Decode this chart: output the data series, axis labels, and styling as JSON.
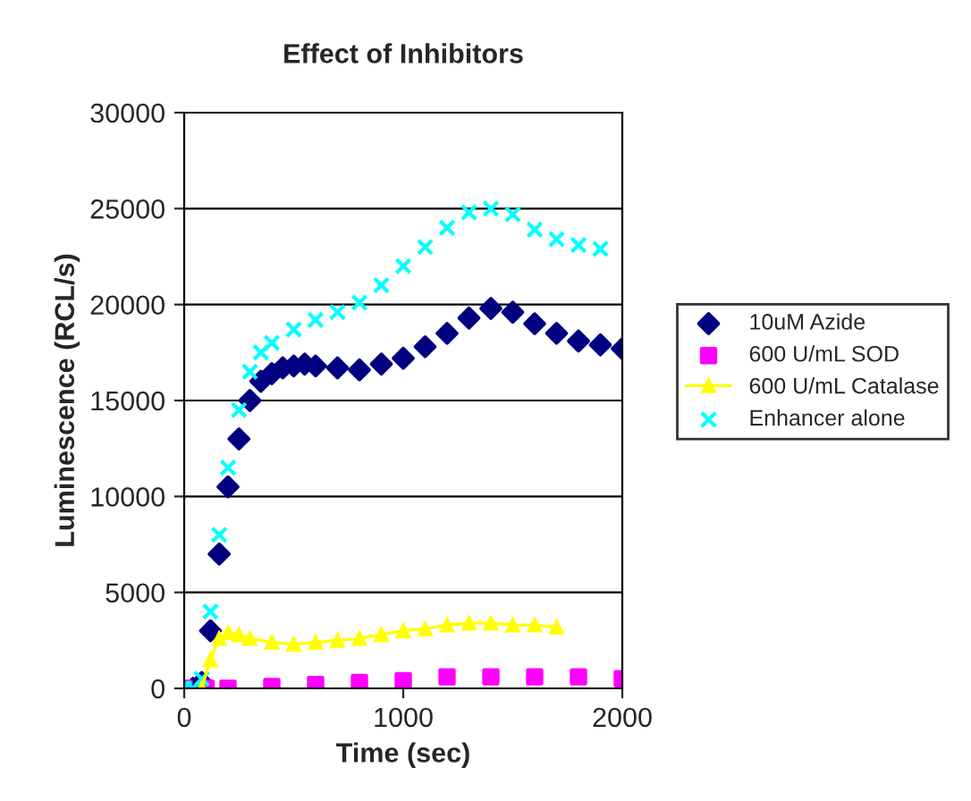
{
  "chart_data": {
    "type": "line",
    "title": "Effect of Inhibitors",
    "xlabel": "Time (sec)",
    "ylabel": "Luminescence (RCL/s)",
    "xlim": [
      0,
      2000
    ],
    "xticks": [
      0,
      1000,
      2000
    ],
    "ylim": [
      0,
      30000
    ],
    "yticks": [
      0,
      5000,
      10000,
      15000,
      20000,
      25000,
      30000
    ],
    "grid": "y",
    "legend": "right",
    "series": [
      {
        "name": "10uM Azide",
        "type": "scatter",
        "color": "#000080",
        "marker": "diamond",
        "x": [
          40,
          80,
          120,
          160,
          200,
          250,
          300,
          350,
          400,
          450,
          500,
          550,
          600,
          700,
          800,
          900,
          1000,
          1100,
          1200,
          1300,
          1400,
          1500,
          1600,
          1700,
          1800,
          1900,
          2000
        ],
        "values": [
          0,
          300,
          3000,
          7000,
          10500,
          13000,
          15000,
          16000,
          16400,
          16700,
          16800,
          16900,
          16800,
          16700,
          16600,
          16900,
          17200,
          17800,
          18500,
          19300,
          19800,
          19600,
          19000,
          18500,
          18100,
          17900,
          17700
        ]
      },
      {
        "name": "600 U/mL SOD",
        "type": "scatter",
        "color": "#ff00ff",
        "marker": "square",
        "x": [
          0,
          100,
          200,
          400,
          600,
          800,
          1000,
          1200,
          1400,
          1600,
          1800,
          2000
        ],
        "values": [
          0,
          0,
          0,
          100,
          200,
          300,
          400,
          600,
          600,
          600,
          600,
          500
        ]
      },
      {
        "name": "600 U/mL Catalase",
        "color": "#ffff00",
        "marker": "triangle",
        "line_style": "solid",
        "x": [
          80,
          120,
          160,
          200,
          250,
          300,
          400,
          500,
          600,
          700,
          800,
          900,
          1000,
          1100,
          1200,
          1300,
          1400,
          1500,
          1600,
          1700
        ],
        "values": [
          0,
          1500,
          2600,
          2900,
          2800,
          2600,
          2400,
          2300,
          2400,
          2500,
          2600,
          2800,
          3000,
          3100,
          3300,
          3400,
          3400,
          3300,
          3300,
          3200
        ]
      },
      {
        "name": "Enhancer alone",
        "type": "scatter",
        "color": "#00ffff",
        "marker": "cross",
        "x": [
          0,
          40,
          80,
          120,
          160,
          200,
          250,
          300,
          350,
          400,
          500,
          600,
          700,
          800,
          900,
          1000,
          1100,
          1200,
          1300,
          1400,
          1500,
          1600,
          1700,
          1800,
          1900
        ],
        "values": [
          0,
          0,
          500,
          4000,
          8000,
          11500,
          14500,
          16500,
          17500,
          18000,
          18700,
          19200,
          19600,
          20100,
          21000,
          22000,
          23000,
          24000,
          24800,
          25000,
          24700,
          23900,
          23400,
          23100,
          22900
        ]
      }
    ]
  }
}
